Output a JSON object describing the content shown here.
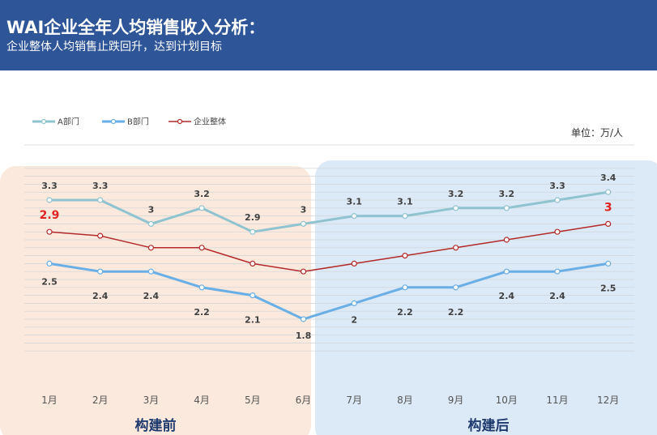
{
  "header": {
    "title": "WAI企业全年人均销售收入分析：",
    "subtitle": "企业整体人均销售止跌回升，达到计划目标"
  },
  "colors": {
    "header_bg": "#2e5597",
    "series_a": "#8fc3cf",
    "series_b": "#6aaee6",
    "series_total": "#b42a2a",
    "before_bg": "#fbe9dd",
    "after_bg": "#dce9f6"
  },
  "chart_data": {
    "type": "line",
    "unit_label": "单位：万/人",
    "categories": [
      "1月",
      "2月",
      "3月",
      "4月",
      "5月",
      "6月",
      "7月",
      "8月",
      "9月",
      "10月",
      "11月",
      "12月"
    ],
    "series": [
      {
        "name": "A部门",
        "values": [
          3.3,
          3.3,
          3,
          3.2,
          2.9,
          3,
          3.1,
          3.1,
          3.2,
          3.2,
          3.3,
          3.4
        ]
      },
      {
        "name": "B部门",
        "values": [
          2.5,
          2.4,
          2.4,
          2.2,
          2.1,
          1.8,
          2,
          2.2,
          2.2,
          2.4,
          2.4,
          2.5
        ]
      },
      {
        "name": "企业整体",
        "values": [
          2.9,
          2.85,
          2.7,
          2.7,
          2.5,
          2.4,
          2.5,
          2.6,
          2.7,
          2.8,
          2.9,
          3.0
        ]
      }
    ],
    "highlighted_labels": [
      "2.9",
      "3"
    ],
    "periods": [
      {
        "label": "构建前",
        "range": [
          "1月",
          "6月"
        ]
      },
      {
        "label": "构建后",
        "range": [
          "7月",
          "12月"
        ]
      }
    ],
    "ylim": [
      1.4,
      3.7
    ],
    "grid": true,
    "legend": "top-left"
  }
}
